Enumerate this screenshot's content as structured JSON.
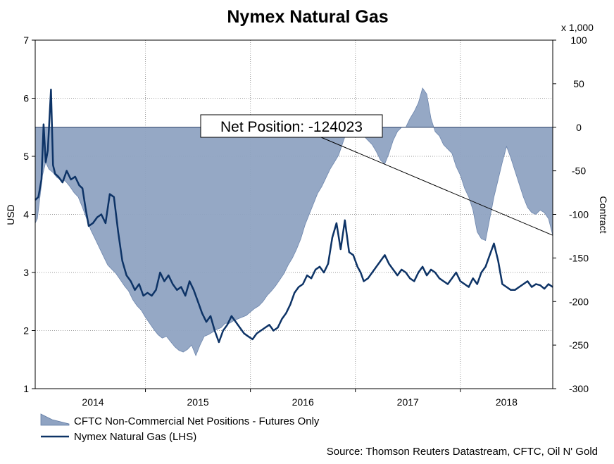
{
  "chart_data": {
    "type": "line",
    "title": "Nymex Natural Gas",
    "ylabel": "USD",
    "y2label": "Contract",
    "y2_multiplier": "x 1,000",
    "x_ticks": [
      "2014",
      "2015",
      "2016",
      "2017",
      "2018"
    ],
    "y_ticks": [
      "1",
      "2",
      "3",
      "4",
      "5",
      "6",
      "7"
    ],
    "y2_ticks": [
      "100",
      "50",
      "0",
      "-50",
      "-100",
      "-150",
      "-200",
      "-250",
      "-300"
    ],
    "ylim": [
      1,
      7
    ],
    "y2lim": [
      -300,
      100
    ],
    "xlim": [
      2013.45,
      2018.38
    ],
    "grid": true,
    "legend_position": "bottom-left",
    "annotation": "Net Position: -124023",
    "source": "Source: Thomson Reuters Datastream, CFTC, Oil N' Gold",
    "series": [
      {
        "name": "CFTC Non-Commercial Net Positions - Futures Only",
        "axis": "right",
        "type": "area",
        "color": "#8fa3c2",
        "x": [
          2013.45,
          2013.47,
          2013.5,
          2013.52,
          2013.55,
          2013.58,
          2013.62,
          2013.66,
          2013.7,
          2013.74,
          2013.78,
          2013.82,
          2013.86,
          2013.9,
          2013.94,
          2013.98,
          2014.02,
          2014.06,
          2014.1,
          2014.14,
          2014.18,
          2014.22,
          2014.26,
          2014.3,
          2014.34,
          2014.38,
          2014.42,
          2014.46,
          2014.5,
          2014.54,
          2014.58,
          2014.62,
          2014.66,
          2014.7,
          2014.74,
          2014.78,
          2014.82,
          2014.86,
          2014.9,
          2014.94,
          2014.98,
          2015.02,
          2015.06,
          2015.1,
          2015.14,
          2015.18,
          2015.22,
          2015.26,
          2015.3,
          2015.34,
          2015.38,
          2015.42,
          2015.46,
          2015.5,
          2015.54,
          2015.58,
          2015.62,
          2015.66,
          2015.7,
          2015.74,
          2015.78,
          2015.82,
          2015.86,
          2015.9,
          2015.94,
          2015.98,
          2016.02,
          2016.06,
          2016.1,
          2016.14,
          2016.18,
          2016.22,
          2016.26,
          2016.3,
          2016.34,
          2016.38,
          2016.42,
          2016.46,
          2016.5,
          2016.54,
          2016.58,
          2016.62,
          2016.66,
          2016.7,
          2016.74,
          2016.78,
          2016.82,
          2016.86,
          2016.9,
          2016.94,
          2016.98,
          2017.02,
          2017.06,
          2017.1,
          2017.14,
          2017.18,
          2017.22,
          2017.26,
          2017.3,
          2017.34,
          2017.38,
          2017.42,
          2017.46,
          2017.5,
          2017.54,
          2017.58,
          2017.62,
          2017.66,
          2017.7,
          2017.74,
          2017.78,
          2017.82,
          2017.86,
          2017.9,
          2017.94,
          2017.98,
          2018.02,
          2018.06,
          2018.1,
          2018.14,
          2018.18,
          2018.22,
          2018.26,
          2018.3,
          2018.34,
          2018.38
        ],
        "y": [
          -110,
          -105,
          -75,
          -55,
          -40,
          -48,
          -52,
          -58,
          -60,
          -62,
          -68,
          -75,
          -80,
          -92,
          -105,
          -118,
          -128,
          -138,
          -148,
          -158,
          -163,
          -168,
          -175,
          -182,
          -188,
          -198,
          -205,
          -210,
          -218,
          -225,
          -232,
          -238,
          -242,
          -240,
          -246,
          -252,
          -256,
          -258,
          -255,
          -250,
          -262,
          -250,
          -240,
          -238,
          -235,
          -232,
          -230,
          -225,
          -225,
          -222,
          -220,
          -218,
          -216,
          -212,
          -208,
          -205,
          -200,
          -193,
          -188,
          -182,
          -175,
          -168,
          -158,
          -150,
          -140,
          -128,
          -112,
          -100,
          -88,
          -76,
          -68,
          -58,
          -48,
          -40,
          -32,
          -18,
          -4,
          0,
          0,
          -5,
          -10,
          -15,
          -20,
          -28,
          -38,
          -42,
          -30,
          -15,
          -5,
          0,
          0,
          10,
          18,
          28,
          45,
          38,
          10,
          -5,
          -10,
          -20,
          -25,
          -30,
          -45,
          -55,
          -70,
          -80,
          -95,
          -120,
          -128,
          -130,
          -105,
          -80,
          -60,
          -40,
          -22,
          -35,
          -50,
          -65,
          -80,
          -92,
          -98,
          -100,
          -95,
          -98,
          -105,
          -124
        ]
      },
      {
        "name": "Nymex Natural Gas (LHS)",
        "axis": "left",
        "type": "line",
        "color": "#0d3366",
        "x": [
          2013.45,
          2013.48,
          2013.51,
          2013.53,
          2013.55,
          2013.57,
          2013.6,
          2013.62,
          2013.64,
          2013.67,
          2013.71,
          2013.75,
          2013.79,
          2013.83,
          2013.87,
          2013.9,
          2013.93,
          2013.96,
          2014.0,
          2014.04,
          2014.08,
          2014.12,
          2014.16,
          2014.2,
          2014.24,
          2014.28,
          2014.32,
          2014.36,
          2014.4,
          2014.44,
          2014.48,
          2014.52,
          2014.56,
          2014.6,
          2014.64,
          2014.68,
          2014.72,
          2014.76,
          2014.8,
          2014.84,
          2014.88,
          2014.92,
          2014.96,
          2015.0,
          2015.04,
          2015.08,
          2015.12,
          2015.16,
          2015.2,
          2015.24,
          2015.28,
          2015.32,
          2015.36,
          2015.4,
          2015.44,
          2015.48,
          2015.52,
          2015.56,
          2015.6,
          2015.64,
          2015.68,
          2015.72,
          2015.76,
          2015.8,
          2015.84,
          2015.88,
          2015.92,
          2015.96,
          2016.0,
          2016.04,
          2016.08,
          2016.12,
          2016.16,
          2016.2,
          2016.24,
          2016.28,
          2016.32,
          2016.36,
          2016.4,
          2016.44,
          2016.48,
          2016.5,
          2016.52,
          2016.55,
          2016.58,
          2016.62,
          2016.66,
          2016.7,
          2016.74,
          2016.78,
          2016.82,
          2016.86,
          2016.9,
          2016.94,
          2016.98,
          2017.02,
          2017.06,
          2017.1,
          2017.14,
          2017.18,
          2017.22,
          2017.26,
          2017.3,
          2017.34,
          2017.38,
          2017.42,
          2017.46,
          2017.5,
          2017.54,
          2017.58,
          2017.62,
          2017.66,
          2017.7,
          2017.74,
          2017.78,
          2017.82,
          2017.86,
          2017.9,
          2017.94,
          2017.98,
          2018.02,
          2018.06,
          2018.1,
          2018.14,
          2018.18,
          2018.22,
          2018.26,
          2018.3,
          2018.34,
          2018.38
        ],
        "y": [
          4.25,
          4.3,
          4.6,
          5.55,
          4.9,
          5.1,
          6.15,
          4.85,
          4.7,
          4.65,
          4.55,
          4.75,
          4.6,
          4.65,
          4.5,
          4.45,
          4.1,
          3.8,
          3.85,
          3.95,
          4.0,
          3.85,
          4.35,
          4.3,
          3.7,
          3.2,
          2.95,
          2.85,
          2.7,
          2.8,
          2.6,
          2.65,
          2.6,
          2.7,
          3.0,
          2.85,
          2.95,
          2.8,
          2.7,
          2.75,
          2.6,
          2.85,
          2.7,
          2.5,
          2.3,
          2.15,
          2.25,
          2.0,
          1.8,
          2.0,
          2.1,
          2.25,
          2.15,
          2.05,
          1.95,
          1.9,
          1.85,
          1.95,
          2.0,
          2.05,
          2.1,
          2.0,
          2.05,
          2.2,
          2.3,
          2.45,
          2.65,
          2.75,
          2.8,
          2.95,
          2.9,
          3.05,
          3.1,
          3.0,
          3.15,
          3.6,
          3.85,
          3.4,
          3.9,
          3.35,
          3.3,
          3.2,
          3.1,
          3.0,
          2.85,
          2.9,
          3.0,
          3.1,
          3.2,
          3.3,
          3.15,
          3.05,
          2.95,
          3.05,
          3.0,
          2.9,
          2.85,
          3.0,
          3.1,
          2.95,
          3.05,
          3.0,
          2.9,
          2.85,
          2.8,
          2.9,
          3.0,
          2.85,
          2.8,
          2.75,
          2.9,
          2.8,
          3.0,
          3.1,
          3.3,
          3.5,
          3.2,
          2.8,
          2.75,
          2.7,
          2.7,
          2.75,
          2.8,
          2.85,
          2.75,
          2.8,
          2.78,
          2.72,
          2.8,
          2.75
        ]
      }
    ]
  }
}
